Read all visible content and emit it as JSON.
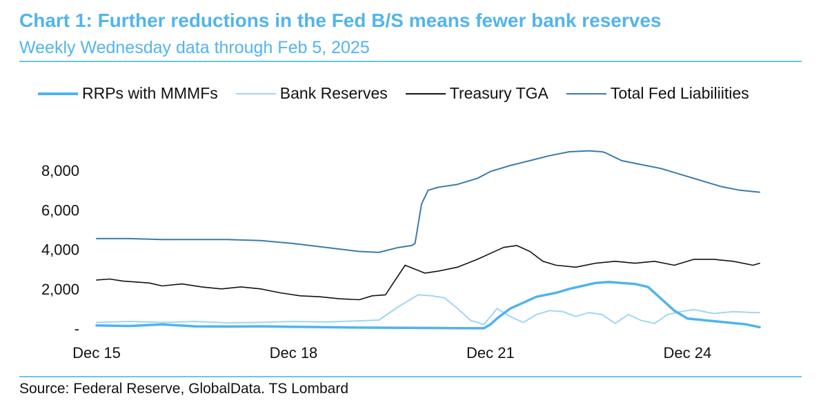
{
  "header": {
    "title": "Chart 1: Further reductions in the Fed B/S means fewer bank reserves",
    "subtitle": "Weekly Wednesday data through Feb 5, 2025"
  },
  "footer": {
    "source": "Source: Federal Reserve, GlobalData. TS Lombard"
  },
  "colors": {
    "title": "#52b4ee",
    "rrp": "#4fb3ee",
    "reserves": "#9fd6f4",
    "tga": "#111111",
    "total": "#3a7aac"
  },
  "chart_data": {
    "type": "line",
    "title": "Chart 1: Further reductions in the Fed B/S means fewer bank reserves",
    "subtitle": "Weekly Wednesday data through Feb 5, 2025",
    "xlabel": "",
    "ylabel": "",
    "ylim": [
      0,
      9300
    ],
    "xlim": [
      2015.0,
      2025.1
    ],
    "grid": false,
    "legend_position": "top",
    "yticks": [
      {
        "value": 0,
        "label": "-"
      },
      {
        "value": 2000,
        "label": "2,000"
      },
      {
        "value": 4000,
        "label": "4,000"
      },
      {
        "value": 6000,
        "label": "6,000"
      },
      {
        "value": 8000,
        "label": "8,000"
      }
    ],
    "xticks": [
      {
        "value": 2015.0,
        "label": "Dec 15"
      },
      {
        "value": 2018.0,
        "label": "Dec 18"
      },
      {
        "value": 2021.0,
        "label": "Dec 21"
      },
      {
        "value": 2024.0,
        "label": "Dec 24"
      }
    ],
    "series": [
      {
        "name": "RRPs with MMMFs",
        "color": "#4fb3ee",
        "width": 3.5,
        "x": [
          2015.0,
          2015.5,
          2016.0,
          2016.5,
          2017.0,
          2017.5,
          2018.0,
          2018.5,
          2019.0,
          2019.5,
          2020.0,
          2020.5,
          2020.9,
          2021.0,
          2021.1,
          2021.3,
          2021.5,
          2021.7,
          2022.0,
          2022.2,
          2022.4,
          2022.6,
          2022.8,
          2023.0,
          2023.2,
          2023.4,
          2023.6,
          2023.8,
          2024.0,
          2024.3,
          2024.6,
          2024.9,
          2025.1
        ],
        "y": [
          150,
          120,
          200,
          100,
          90,
          100,
          80,
          60,
          40,
          30,
          20,
          10,
          5,
          200,
          500,
          1000,
          1300,
          1600,
          1800,
          2000,
          2150,
          2300,
          2350,
          2300,
          2250,
          2100,
          1500,
          900,
          500,
          400,
          300,
          200,
          60
        ]
      },
      {
        "name": "Bank Reserves",
        "color": "#9fd6f4",
        "width": 2,
        "x": [
          2015.0,
          2015.5,
          2016.0,
          2016.5,
          2017.0,
          2017.5,
          2018.0,
          2018.5,
          2019.0,
          2019.3,
          2019.6,
          2019.9,
          2020.1,
          2020.3,
          2020.5,
          2020.7,
          2020.9,
          2021.1,
          2021.3,
          2021.5,
          2021.7,
          2021.9,
          2022.1,
          2022.3,
          2022.5,
          2022.7,
          2022.9,
          2023.1,
          2023.3,
          2023.5,
          2023.7,
          2023.9,
          2024.1,
          2024.4,
          2024.7,
          2025.0,
          2025.1
        ],
        "y": [
          300,
          350,
          300,
          350,
          280,
          300,
          350,
          320,
          380,
          420,
          1100,
          1700,
          1650,
          1550,
          1000,
          400,
          200,
          1000,
          600,
          300,
          700,
          900,
          850,
          600,
          800,
          700,
          250,
          700,
          400,
          250,
          700,
          850,
          950,
          750,
          850,
          800,
          800
        ]
      },
      {
        "name": "Treasury TGA",
        "color": "#111111",
        "width": 1.6,
        "x": [
          2015.0,
          2015.2,
          2015.4,
          2015.6,
          2015.8,
          2016.0,
          2016.3,
          2016.6,
          2016.9,
          2017.2,
          2017.5,
          2017.8,
          2018.1,
          2018.4,
          2018.7,
          2019.0,
          2019.2,
          2019.4,
          2019.5,
          2019.7,
          2020.0,
          2020.2,
          2020.5,
          2020.8,
          2021.0,
          2021.2,
          2021.4,
          2021.6,
          2021.8,
          2022.0,
          2022.3,
          2022.6,
          2022.9,
          2023.2,
          2023.5,
          2023.8,
          2024.1,
          2024.4,
          2024.7,
          2025.0,
          2025.1
        ],
        "y": [
          2450,
          2500,
          2400,
          2350,
          2300,
          2150,
          2250,
          2100,
          2000,
          2100,
          2000,
          1800,
          1650,
          1600,
          1500,
          1450,
          1650,
          1700,
          2200,
          3200,
          2800,
          2900,
          3100,
          3500,
          3800,
          4100,
          4200,
          3900,
          3400,
          3200,
          3100,
          3300,
          3400,
          3300,
          3400,
          3200,
          3500,
          3500,
          3400,
          3200,
          3300
        ]
      },
      {
        "name": "Total Fed Liabiliities",
        "color": "#3a7aac",
        "width": 2,
        "x": [
          2015.0,
          2015.5,
          2016.0,
          2016.5,
          2017.0,
          2017.5,
          2018.0,
          2018.5,
          2019.0,
          2019.3,
          2019.6,
          2019.8,
          2019.85,
          2019.95,
          2020.05,
          2020.2,
          2020.5,
          2020.8,
          2021.0,
          2021.3,
          2021.6,
          2021.9,
          2022.2,
          2022.5,
          2022.7,
          2022.75,
          2023.0,
          2023.3,
          2023.6,
          2023.9,
          2024.2,
          2024.5,
          2024.8,
          2025.1
        ],
        "y": [
          4550,
          4550,
          4500,
          4500,
          4500,
          4450,
          4300,
          4100,
          3900,
          3850,
          4100,
          4200,
          4300,
          6300,
          7000,
          7150,
          7300,
          7600,
          7950,
          8250,
          8500,
          8750,
          8950,
          9000,
          8950,
          8900,
          8500,
          8300,
          8100,
          7800,
          7500,
          7200,
          7000,
          6900
        ]
      }
    ]
  }
}
